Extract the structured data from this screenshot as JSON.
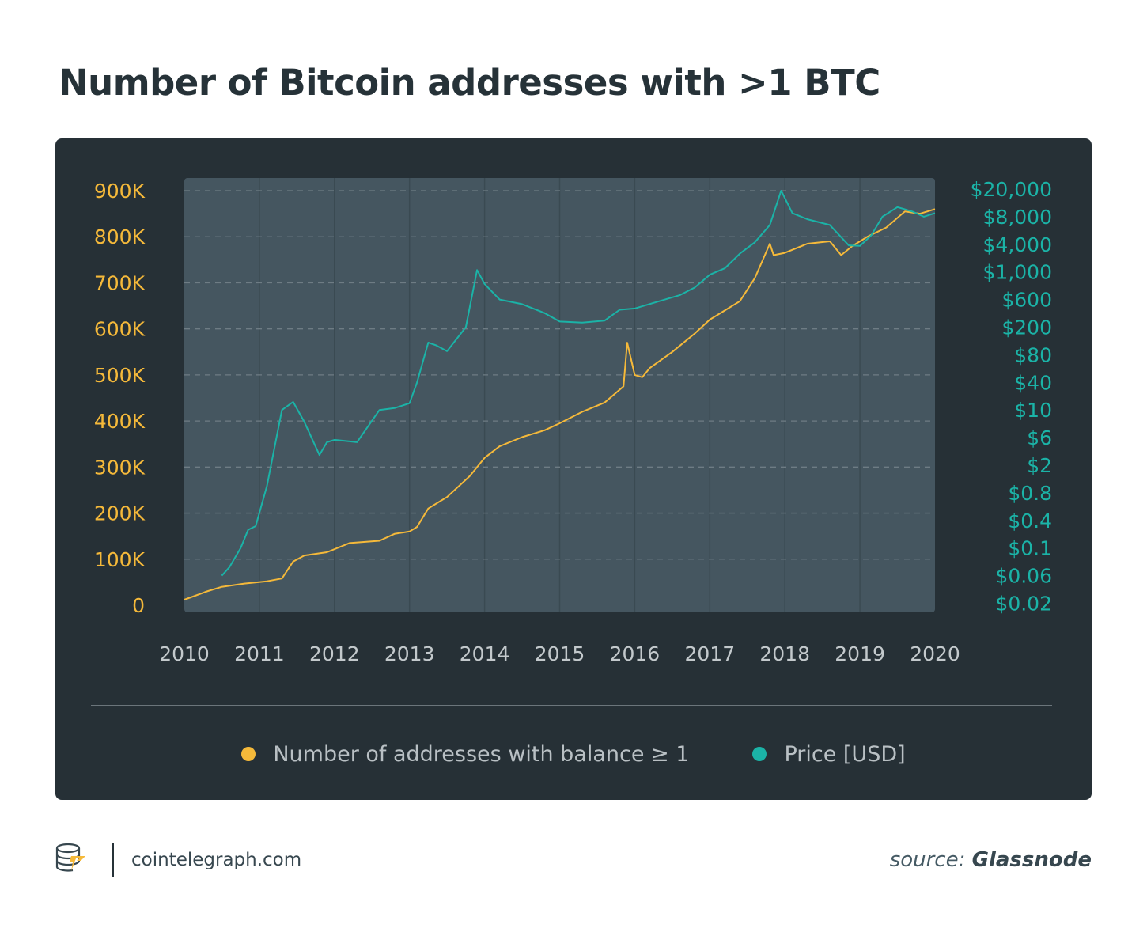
{
  "title": "Number of Bitcoin addresses with >1 BTC",
  "footer": {
    "site": "cointelegraph.com",
    "source_prefix": "source:",
    "source_name": "Glassnode"
  },
  "colors": {
    "addresses": "#f5b93a",
    "price": "#1bb3a7",
    "panel": "#263036",
    "plot_bg": "#455660"
  },
  "icons": {
    "logo": "cointelegraph-logo-icon"
  },
  "chart_data": {
    "type": "line",
    "title": "Number of Bitcoin addresses with >1 BTC",
    "x_ticks": [
      "2010",
      "2011",
      "2012",
      "2013",
      "2014",
      "2015",
      "2016",
      "2017",
      "2018",
      "2019",
      "2020"
    ],
    "xlim": [
      2010.0,
      2020.0
    ],
    "y_left": {
      "ticks": [
        "900K",
        "800K",
        "700K",
        "600K",
        "500K",
        "400K",
        "300K",
        "200K",
        "100K",
        "0"
      ],
      "range": [
        0,
        900000
      ],
      "color": "#f5b93a"
    },
    "y_right": {
      "ticks": [
        "$20,000",
        "$8,000",
        "$4,000",
        "$1,000",
        "$600",
        "$200",
        "$80",
        "$40",
        "$10",
        "$6",
        "$2",
        "$0.8",
        "$0.4",
        "$0.1",
        "$0.06",
        "$0.02"
      ],
      "scale": "log (categorical tick spacing)",
      "color": "#1bb3a7"
    },
    "grid": "horizontal dashed",
    "legend": "bottom-center",
    "series": [
      {
        "name": "Number of addresses with balance ≥ 1",
        "axis": "left",
        "color": "#f5b93a",
        "x": [
          2010.0,
          2010.3,
          2010.5,
          2010.8,
          2011.1,
          2011.3,
          2011.45,
          2011.6,
          2011.9,
          2012.2,
          2012.6,
          2012.8,
          2013.0,
          2013.1,
          2013.25,
          2013.5,
          2013.8,
          2014.0,
          2014.2,
          2014.5,
          2014.8,
          2015.0,
          2015.3,
          2015.6,
          2015.85,
          2015.9,
          2016.0,
          2016.1,
          2016.2,
          2016.5,
          2016.8,
          2017.0,
          2017.2,
          2017.4,
          2017.6,
          2017.8,
          2017.85,
          2018.0,
          2018.3,
          2018.6,
          2018.75,
          2018.9,
          2019.1,
          2019.35,
          2019.6,
          2019.8,
          2020.0
        ],
        "values": [
          12000,
          30000,
          40000,
          47000,
          52000,
          58000,
          95000,
          108000,
          115000,
          135000,
          140000,
          155000,
          160000,
          170000,
          210000,
          235000,
          280000,
          320000,
          345000,
          365000,
          380000,
          395000,
          420000,
          440000,
          475000,
          570000,
          500000,
          495000,
          515000,
          550000,
          590000,
          620000,
          640000,
          660000,
          710000,
          785000,
          760000,
          765000,
          785000,
          790000,
          760000,
          780000,
          800000,
          820000,
          855000,
          850000,
          860000
        ]
      },
      {
        "name": "Price [USD]",
        "axis": "right",
        "color": "#1bb3a7",
        "x": [
          2010.5,
          2010.6,
          2010.75,
          2010.85,
          2010.95,
          2011.1,
          2011.3,
          2011.45,
          2011.6,
          2011.8,
          2011.9,
          2012.0,
          2012.3,
          2012.6,
          2012.8,
          2013.0,
          2013.1,
          2013.25,
          2013.35,
          2013.5,
          2013.75,
          2013.9,
          2014.0,
          2014.2,
          2014.5,
          2014.8,
          2015.0,
          2015.3,
          2015.6,
          2015.8,
          2016.0,
          2016.3,
          2016.6,
          2016.8,
          2017.0,
          2017.2,
          2017.4,
          2017.6,
          2017.8,
          2017.95,
          2018.1,
          2018.3,
          2018.6,
          2018.85,
          2019.0,
          2019.15,
          2019.3,
          2019.5,
          2019.7,
          2019.85,
          2020.0
        ],
        "values": [
          0.06,
          0.07,
          0.1,
          0.25,
          0.3,
          1.0,
          10.0,
          15.0,
          8.0,
          3.0,
          5.0,
          5.5,
          5.0,
          10.0,
          11.0,
          14.0,
          40.0,
          120.0,
          110.0,
          90.0,
          200.0,
          1100.0,
          800.0,
          600.0,
          500.0,
          350.0,
          250.0,
          240.0,
          260.0,
          400.0,
          420.0,
          550.0,
          650.0,
          750.0,
          950.0,
          1200.0,
          2500.0,
          4200.0,
          6500.0,
          19000.0,
          9000.0,
          7500.0,
          6500.0,
          3800.0,
          3700.0,
          5000.0,
          8000.0,
          11000.0,
          9500.0,
          8000.0,
          9000.0
        ]
      }
    ]
  }
}
